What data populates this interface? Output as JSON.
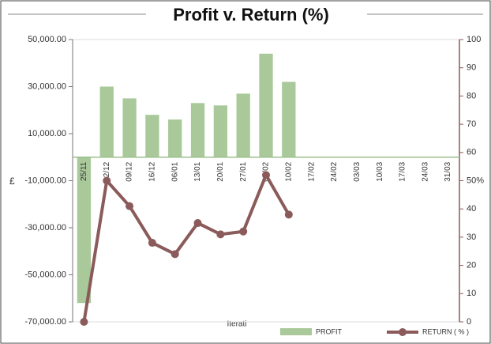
{
  "chart_data": {
    "type": "bar-line",
    "title": "Profit v. Return (%)",
    "ylabel": "£",
    "xlabel": "Iterati",
    "categories": [
      "25/11",
      "02/12",
      "09/12",
      "16/12",
      "06/01",
      "13/01",
      "20/01",
      "27/01",
      "03/02",
      "10/02",
      "17/02",
      "24/02",
      "03/03",
      "10/03",
      "17/03",
      "24/03",
      "31/03"
    ],
    "series": [
      {
        "name": "PROFIT",
        "type": "bar",
        "color": "#a9c99a",
        "values": [
          -62000,
          30000,
          25000,
          18000,
          16000,
          23000,
          22000,
          27000,
          44000,
          32000,
          null,
          null,
          null,
          null,
          null,
          null,
          null
        ]
      },
      {
        "name": "RETURN ( % )",
        "type": "line",
        "axis": "y2",
        "color": "#8b5a5a",
        "values": [
          0,
          50,
          41,
          28,
          24,
          35,
          31,
          32,
          52,
          38,
          null,
          null,
          null,
          null,
          null,
          null,
          null
        ]
      }
    ],
    "ylim": [
      -70000,
      50000
    ],
    "yticks": [
      {
        "value": -70000,
        "label": "-70,000.00"
      },
      {
        "value": -50000,
        "label": "-50,000.00"
      },
      {
        "value": -30000,
        "label": "-30,000.00"
      },
      {
        "value": -10000,
        "label": "-10,000.00"
      },
      {
        "value": 10000,
        "label": "10,000.00"
      },
      {
        "value": 30000,
        "label": "30,000.00"
      },
      {
        "value": 50000,
        "label": "50,000.00"
      }
    ],
    "y2lim": [
      0,
      100
    ],
    "y2ticks": [
      0,
      10,
      20,
      30,
      40,
      {
        "value": 50,
        "label": "50%"
      },
      60,
      70,
      80,
      90,
      100
    ]
  }
}
